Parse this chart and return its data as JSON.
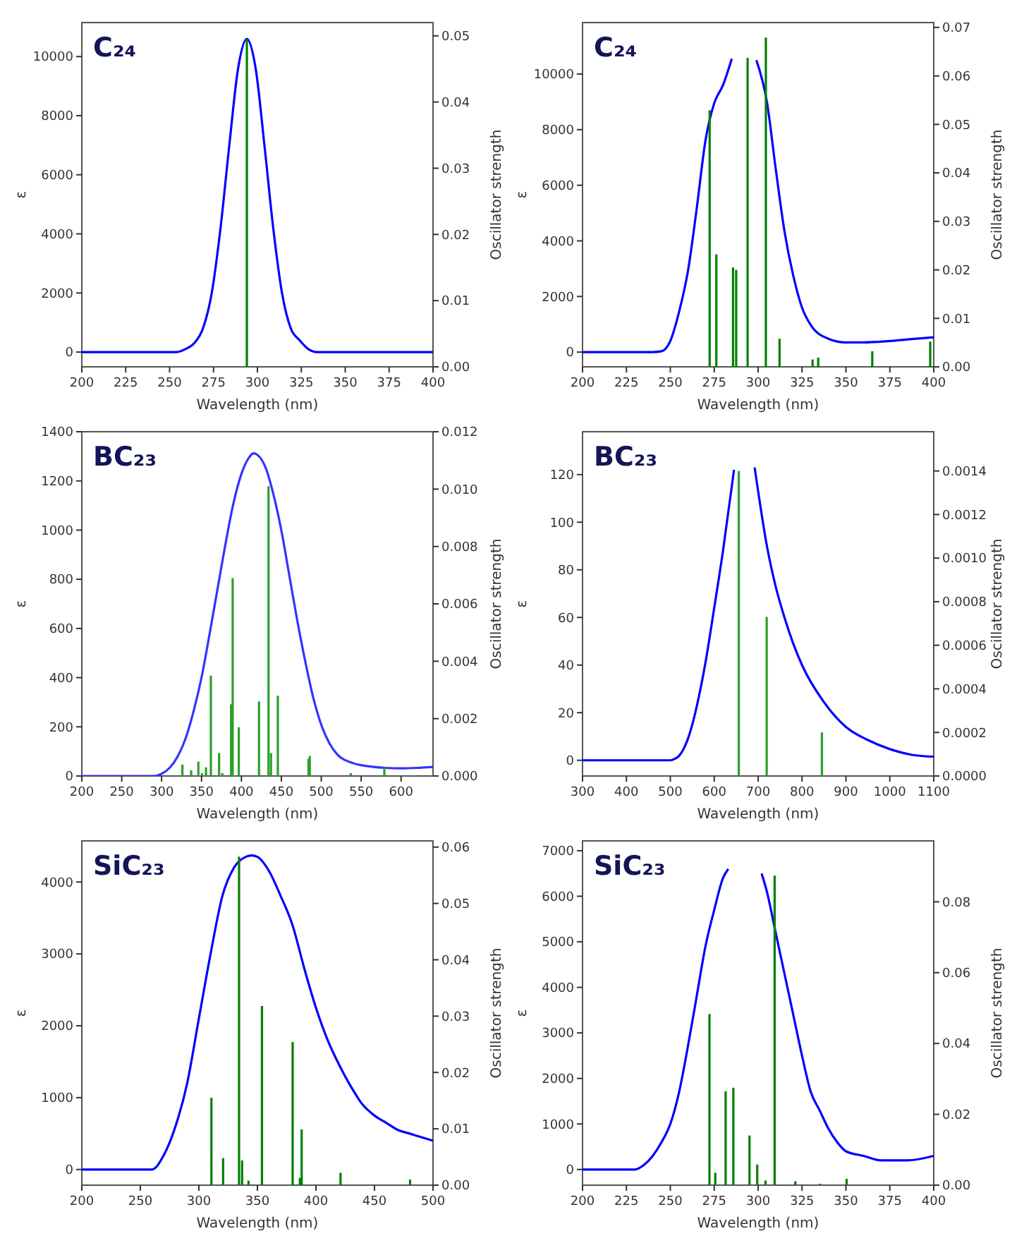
{
  "chart_data": [
    {
      "type": "line",
      "title": "C₂₄",
      "xlabel": "Wavelength (nm)",
      "ylabel": "ε",
      "y2label": "Oscillator strength",
      "xlim": [
        200,
        400
      ],
      "xticks": [
        200,
        225,
        250,
        275,
        300,
        325,
        350,
        375,
        400
      ],
      "ylim": [
        -500,
        11150
      ],
      "yticks": [
        0,
        2000,
        4000,
        6000,
        8000,
        10000
      ],
      "y2lim": [
        0,
        0.052
      ],
      "y2ticks": [
        {
          "value": 0,
          "label": "0.00"
        },
        {
          "value": 0.01,
          "label": "0.01"
        },
        {
          "value": 0.02,
          "label": "0.02"
        },
        {
          "value": 0.03,
          "label": "0.03"
        },
        {
          "value": 0.04,
          "label": "0.04"
        },
        {
          "value": 0.05,
          "label": "0.05"
        }
      ],
      "series": [
        {
          "color": "#0000ff",
          "x": [
            200,
            250,
            254,
            259,
            264,
            269,
            274,
            279,
            284,
            289,
            294,
            299,
            304,
            309,
            314,
            319,
            324,
            329,
            334,
            340,
            400
          ],
          "values": [
            0,
            0,
            0,
            100,
            300,
            800,
            2000,
            4200,
            7000,
            9600,
            10600,
            9600,
            7000,
            4200,
            2000,
            800,
            400,
            100,
            0,
            0,
            0
          ]
        },
        {
          "type": "bar",
          "axis": "y2",
          "color": "#008000",
          "x": [
            294
          ],
          "values": [
            0.0495
          ]
        }
      ]
    },
    {
      "type": "line",
      "title": "C₂₄",
      "xlabel": "Wavelength (nm)",
      "ylabel": "ε",
      "y2label": "Oscillator strength",
      "xlim": [
        200,
        400
      ],
      "xticks": [
        200,
        225,
        250,
        275,
        300,
        325,
        350,
        375,
        400
      ],
      "ylim": [
        -530,
        11850
      ],
      "yticks": [
        0,
        2000,
        4000,
        6000,
        8000,
        10000
      ],
      "y2lim": [
        0,
        0.071
      ],
      "y2ticks": [
        {
          "value": 0,
          "label": "0.00"
        },
        {
          "value": 0.01,
          "label": "0.01"
        },
        {
          "value": 0.02,
          "label": "0.02"
        },
        {
          "value": 0.03,
          "label": "0.03"
        },
        {
          "value": 0.04,
          "label": "0.04"
        },
        {
          "value": 0.05,
          "label": "0.05"
        },
        {
          "value": 0.06,
          "label": "0.06"
        },
        {
          "value": 0.07,
          "label": "0.07"
        }
      ],
      "series": [
        {
          "color": "#0000ff",
          "x": [
            200,
            240,
            245,
            250,
            255,
            260,
            265,
            270,
            275,
            280,
            285,
            292,
            299,
            305,
            310,
            315,
            320,
            325,
            330,
            340,
            350,
            360,
            375,
            390,
            400
          ],
          "values": [
            0,
            0,
            30,
            400,
            1450,
            2900,
            5150,
            7600,
            8950,
            9600,
            10550,
            null,
            10500,
            9000,
            6600,
            4350,
            2750,
            1600,
            970,
            480,
            350,
            350,
            400,
            480,
            530
          ]
        },
        {
          "type": "bar",
          "axis": "y2",
          "color": "#008000",
          "x": [
            272.4,
            276.2,
            285.7,
            287.5,
            294,
            304.4,
            312.2,
            331,
            334.2,
            365,
            398
          ],
          "values": [
            0.0529,
            0.0232,
            0.0205,
            0.02,
            0.0637,
            0.0679,
            0.0058,
            0.0015,
            0.0019,
            0.0032,
            0.0052
          ]
        }
      ]
    },
    {
      "type": "line",
      "title": "BC₂₃",
      "xlabel": "Wavelength (nm)",
      "ylabel": "ε",
      "y2label": "Oscillator strength",
      "xlim": [
        200,
        640
      ],
      "xticks": [
        200,
        250,
        300,
        350,
        400,
        450,
        500,
        550,
        600
      ],
      "ylim": [
        0,
        1400
      ],
      "yticks": [
        0,
        200,
        400,
        600,
        800,
        1000,
        1200,
        1400
      ],
      "y2lim": [
        0,
        0.012
      ],
      "y2ticks": [
        {
          "value": 0,
          "label": "0.000"
        },
        {
          "value": 0.002,
          "label": "0.002"
        },
        {
          "value": 0.004,
          "label": "0.004"
        },
        {
          "value": 0.006,
          "label": "0.006"
        },
        {
          "value": 0.008,
          "label": "0.008"
        },
        {
          "value": 0.01,
          "label": "0.010"
        },
        {
          "value": 0.012,
          "label": "0.012"
        }
      ],
      "series": [
        {
          "color": "#3333ff",
          "x": [
            200,
            290,
            300,
            310,
            320,
            330,
            340,
            350,
            360,
            370,
            380,
            390,
            400,
            410,
            415,
            420,
            430,
            440,
            450,
            460,
            470,
            480,
            490,
            500,
            510,
            520,
            540,
            560,
            580,
            600,
            620,
            640
          ],
          "values": [
            0,
            0,
            9,
            33,
            79,
            153,
            263,
            401,
            576,
            760,
            944,
            1109,
            1229,
            1297,
            1312,
            1306,
            1256,
            1146,
            999,
            815,
            631,
            465,
            318,
            208,
            134,
            88,
            52,
            39,
            33,
            31,
            33,
            37
          ]
        },
        {
          "type": "bar",
          "axis": "y2",
          "color": "#2ca02c",
          "x": [
            326,
            337,
            346,
            350.6,
            355.6,
            361.7,
            372,
            376,
            387,
            389,
            396.7,
            422,
            433.9,
            437,
            445.6,
            484,
            485.6,
            537,
            579
          ],
          "values": [
            0.0004,
            0.0002,
            0.0005,
            0.0001,
            0.0003,
            0.0035,
            0.0008,
            0.0001,
            0.0025,
            0.0069,
            0.0017,
            0.0026,
            0.0101,
            0.0008,
            0.0028,
            0.0006,
            0.0007,
            0.0001,
            0.0003
          ]
        }
      ]
    },
    {
      "type": "line",
      "title": "BC₂₃",
      "xlabel": "Wavelength (nm)",
      "ylabel": "ε",
      "y2label": "Oscillator strength",
      "xlim": [
        300,
        1100
      ],
      "xticks": [
        300,
        400,
        500,
        600,
        700,
        800,
        900,
        1000,
        1100
      ],
      "ylim": [
        -6.6,
        138
      ],
      "yticks": [
        0,
        20,
        40,
        60,
        80,
        100,
        120
      ],
      "y2lim": [
        0,
        0.00158
      ],
      "y2ticks": [
        {
          "value": 0,
          "label": "0.0000"
        },
        {
          "value": 0.0002,
          "label": "0.0002"
        },
        {
          "value": 0.0004,
          "label": "0.0004"
        },
        {
          "value": 0.0006,
          "label": "0.0006"
        },
        {
          "value": 0.0008,
          "label": "0.0008"
        },
        {
          "value": 0.001,
          "label": "0.0010"
        },
        {
          "value": 0.0012,
          "label": "0.0012"
        },
        {
          "value": 0.0014,
          "label": "0.0014"
        }
      ],
      "series": [
        {
          "color": "#0000ff",
          "x": [
            300,
            500,
            510,
            520,
            530,
            540,
            550,
            560,
            580,
            600,
            620,
            640,
            645,
            668,
            692,
            700,
            720,
            740,
            760,
            780,
            800,
            850,
            900,
            950,
            1000,
            1050,
            1100
          ],
          "values": [
            0,
            0,
            0.6,
            1.9,
            4.7,
            9,
            15,
            22.5,
            41,
            64,
            88,
            115,
            122,
            null,
            123,
            113,
            90,
            73,
            60,
            49,
            40,
            24.4,
            14,
            8.5,
            4.7,
            2.3,
            1.5
          ]
        },
        {
          "type": "bar",
          "axis": "y2",
          "color": "#2ca02c",
          "x": [
            656,
            719.5,
            845.3
          ],
          "values": [
            0.0014,
            0.00073,
            0.0002
          ]
        }
      ]
    },
    {
      "type": "line",
      "title": "SiC₂₃",
      "xlabel": "Wavelength (nm)",
      "ylabel": "ε",
      "y2label": "Oscillator strength",
      "xlim": [
        200,
        500
      ],
      "xticks": [
        200,
        250,
        300,
        350,
        400,
        450,
        500
      ],
      "ylim": [
        -218,
        4572
      ],
      "yticks": [
        0,
        1000,
        2000,
        3000,
        4000
      ],
      "y2lim": [
        0,
        0.0611
      ],
      "y2ticks": [
        {
          "value": 0,
          "label": "0.00"
        },
        {
          "value": 0.01,
          "label": "0.01"
        },
        {
          "value": 0.02,
          "label": "0.02"
        },
        {
          "value": 0.03,
          "label": "0.03"
        },
        {
          "value": 0.04,
          "label": "0.04"
        },
        {
          "value": 0.05,
          "label": "0.05"
        },
        {
          "value": 0.06,
          "label": "0.06"
        }
      ],
      "series": [
        {
          "color": "#0000ff",
          "x": [
            200,
            250,
            260,
            270,
            280,
            290,
            300,
            310,
            320,
            330,
            340,
            345,
            350,
            360,
            370,
            380,
            390,
            400,
            410,
            420,
            430,
            440,
            450,
            460,
            470,
            480,
            490,
            500
          ],
          "values": [
            0,
            0,
            0,
            200,
            600,
            1200,
            2100,
            3000,
            3800,
            4200,
            4350,
            4370,
            4350,
            4150,
            3800,
            3400,
            2800,
            2250,
            1800,
            1450,
            1150,
            900,
            750,
            650,
            550,
            500,
            450,
            400
          ]
        },
        {
          "type": "bar",
          "axis": "y2",
          "color": "#008000",
          "x": [
            310.7,
            320.7,
            334.3,
            336.9,
            342.4,
            353.9,
            380.1,
            386.3,
            387.8,
            421,
            480.4
          ],
          "values": [
            0.0155,
            0.0048,
            0.0583,
            0.0044,
            0.0008,
            0.0318,
            0.0254,
            0.0013,
            0.0099,
            0.0022,
            0.001
          ]
        }
      ]
    },
    {
      "type": "line",
      "title": "SiC₂₃",
      "xlabel": "Wavelength (nm)",
      "ylabel": "ε",
      "y2label": "Oscillator strength",
      "xlim": [
        200,
        400
      ],
      "xticks": [
        200,
        225,
        250,
        275,
        300,
        325,
        350,
        375,
        400
      ],
      "ylim": [
        -344,
        7216
      ],
      "yticks": [
        0,
        1000,
        2000,
        3000,
        4000,
        5000,
        6000,
        7000
      ],
      "y2lim": [
        0,
        0.0972
      ],
      "y2ticks": [
        {
          "value": 0,
          "label": "0.00"
        },
        {
          "value": 0.02,
          "label": "0.02"
        },
        {
          "value": 0.04,
          "label": "0.04"
        },
        {
          "value": 0.06,
          "label": "0.06"
        },
        {
          "value": 0.08,
          "label": "0.08"
        }
      ],
      "series": [
        {
          "color": "#0000ff",
          "x": [
            200,
            225,
            230,
            235,
            240,
            245,
            250,
            255,
            260,
            265,
            270,
            275,
            280,
            283,
            292,
            302,
            305,
            310,
            315,
            320,
            325,
            330,
            335,
            340,
            345,
            350,
            360,
            370,
            385,
            400
          ],
          "values": [
            0,
            0,
            0,
            100,
            300,
            600,
            1000,
            1700,
            2700,
            3800,
            4900,
            5700,
            6400,
            6600,
            null,
            6500,
            6100,
            5200,
            4300,
            3400,
            2500,
            1700,
            1300,
            900,
            600,
            400,
            300,
            200,
            200,
            300
          ]
        },
        {
          "type": "bar",
          "axis": "y2",
          "color": "#008000",
          "x": [
            272.3,
            275.6,
            281.5,
            285.9,
            295.1,
            299.5,
            304.2,
            309.4,
            321.2,
            335.3,
            350.4
          ],
          "values": [
            0.0483,
            0.0035,
            0.0265,
            0.0275,
            0.014,
            0.0058,
            0.0013,
            0.0874,
            0.0011,
            0.0004,
            0.0018
          ]
        }
      ]
    }
  ]
}
